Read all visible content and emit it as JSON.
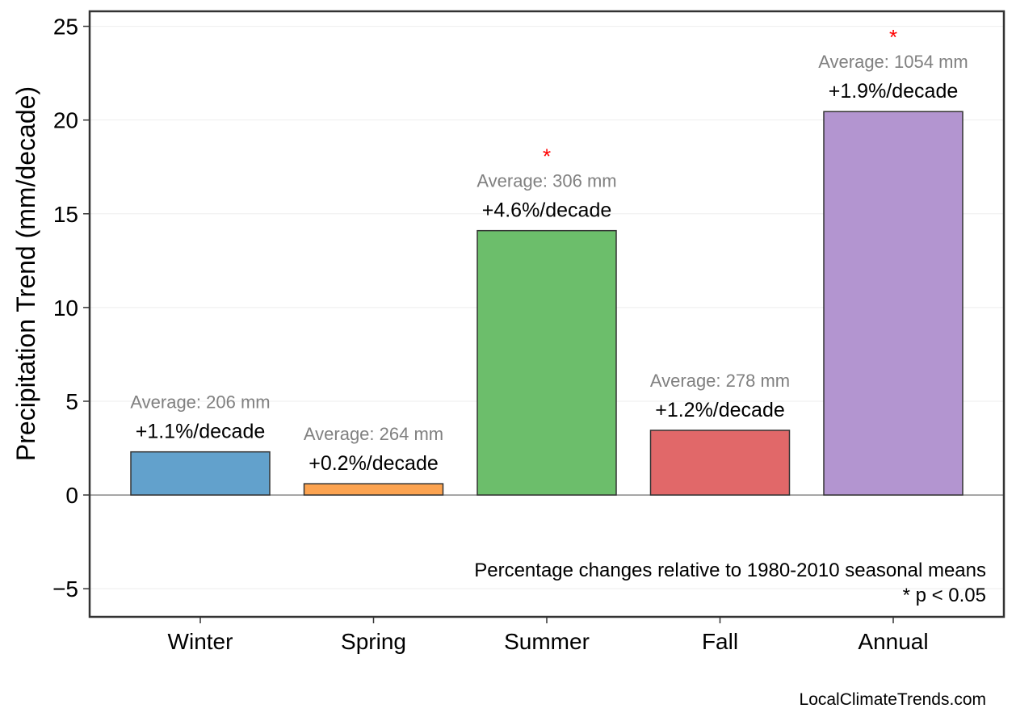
{
  "chart_data": {
    "type": "bar",
    "ylabel": "Precipitation Trend (mm/decade)",
    "categories": [
      "Winter",
      "Spring",
      "Summer",
      "Fall",
      "Annual"
    ],
    "values": [
      2.3,
      0.6,
      14.1,
      3.45,
      20.45
    ],
    "colors": [
      "#62a1cc",
      "#fca350",
      "#6cbe6b",
      "#e16869",
      "#b395d0"
    ],
    "percent_labels": [
      "+1.1%/decade",
      "+0.2%/decade",
      "+4.6%/decade",
      "+1.2%/decade",
      "+1.9%/decade"
    ],
    "average_labels": [
      "Average: 206 mm",
      "Average: 264 mm",
      "Average: 306 mm",
      "Average: 278 mm",
      "Average: 1054 mm"
    ],
    "significant": [
      false,
      false,
      true,
      false,
      true
    ],
    "significance_marker": "*",
    "ylim": [
      -6.5,
      25.8
    ],
    "yticks": [
      -5,
      0,
      5,
      10,
      15,
      20,
      25
    ],
    "ytick_labels": [
      "−5",
      "0",
      "5",
      "10",
      "15",
      "20",
      "25"
    ],
    "grid": true,
    "note_lines": [
      "Percentage changes relative to 1980-2010 seasonal means",
      "* p < 0.05"
    ]
  },
  "credit": "LocalClimateTrends.com"
}
